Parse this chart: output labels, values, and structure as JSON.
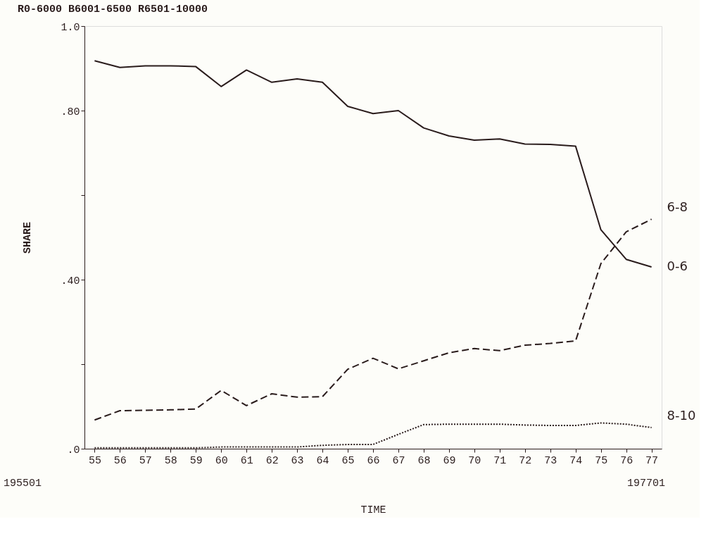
{
  "chart_data": {
    "type": "line",
    "title": "R0-6000  B6001-6500  R6501-10000",
    "xlabel": "TIME",
    "ylabel": "SHARE",
    "categories": [
      "55",
      "56",
      "57",
      "58",
      "59",
      "60",
      "61",
      "62",
      "63",
      "64",
      "65",
      "66",
      "67",
      "68",
      "69",
      "70",
      "71",
      "72",
      "73",
      "74",
      "75",
      "76",
      "77"
    ],
    "series": [
      {
        "name": "0-6",
        "color": "#2a1c1c",
        "line_style": "solid",
        "values": [
          0.918,
          0.902,
          0.906,
          0.906,
          0.904,
          0.857,
          0.896,
          0.867,
          0.875,
          0.867,
          0.81,
          0.793,
          0.8,
          0.759,
          0.74,
          0.73,
          0.733,
          0.721,
          0.72,
          0.716,
          0.518,
          0.448,
          0.43
        ]
      },
      {
        "name": "6-8",
        "color": "#2a1c1c",
        "line_style": "dashed",
        "values": [
          0.068,
          0.09,
          0.091,
          0.092,
          0.094,
          0.138,
          0.102,
          0.13,
          0.122,
          0.123,
          0.188,
          0.214,
          0.189,
          0.208,
          0.227,
          0.237,
          0.232,
          0.245,
          0.249,
          0.255,
          0.438,
          0.513,
          0.543
        ]
      },
      {
        "name": "8-10",
        "color": "#2a1c1c",
        "line_style": "dotted",
        "values": [
          0.002,
          0.002,
          0.002,
          0.002,
          0.002,
          0.004,
          0.004,
          0.004,
          0.004,
          0.008,
          0.01,
          0.01,
          0.034,
          0.057,
          0.058,
          0.058,
          0.058,
          0.056,
          0.055,
          0.055,
          0.061,
          0.058,
          0.05
        ]
      }
    ],
    "ylim": [
      0,
      1.0
    ],
    "yticks": [
      {
        "value": 0,
        "label": ".0"
      },
      {
        "value": 0.2,
        "label": null
      },
      {
        "value": 0.4,
        "label": ".40"
      },
      {
        "value": 0.6,
        "label": null
      },
      {
        "value": 0.8,
        "label": ".80"
      },
      {
        "value": 1.0,
        "label": "1.0"
      }
    ],
    "annotations": [
      "195501",
      "197701"
    ]
  }
}
